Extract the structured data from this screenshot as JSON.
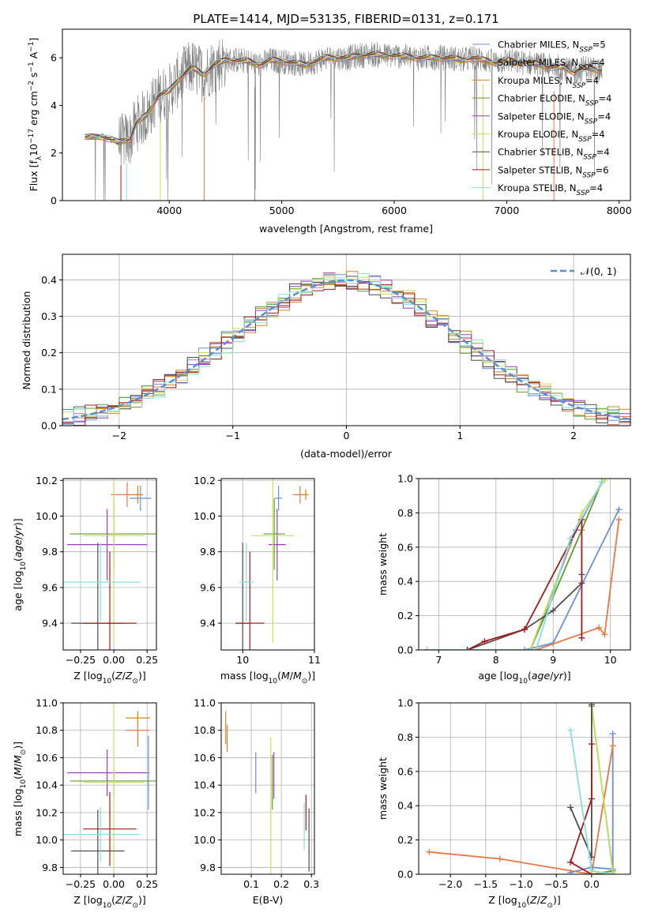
{
  "figure": {
    "title": "PLATE=1414, MJD=53135, FIBERID=0131, z=0.171"
  },
  "colors": {
    "Chabrier MILES": "#6a8ee0",
    "Salpeter MILES": "#e87840",
    "Kroupa MILES": "#d08a18",
    "Chabrier ELODIE": "#5f9c2e",
    "Salpeter ELODIE": "#9a3cc8",
    "Kroupa ELODIE": "#c9e05a",
    "Chabrier STELIB": "#4d4d4d",
    "Salpeter STELIB": "#a31a1a",
    "Kroupa STELIB": "#86dede",
    "data": "#808080",
    "normal": "#5b8ed6"
  },
  "chart_data": [
    {
      "id": "spectrum",
      "type": "line",
      "xlabel": "wavelength [Angstrom, rest frame]",
      "ylabel": "Flux [f_λ 10^-17 erg cm^-2 s^-1 A^-1]",
      "xlim": [
        3050,
        8100
      ],
      "ylim": [
        0,
        7.2
      ],
      "xticks": [
        4000,
        5000,
        6000,
        7000,
        8000
      ],
      "yticks": [
        0,
        2,
        4,
        6
      ],
      "legend_position": "upper-right",
      "legend": [
        {
          "label": "Chabrier MILES, N",
          "sub": "SSP",
          "suffix": "=5",
          "color_key": "Chabrier MILES"
        },
        {
          "label": "Salpeter MILES, N",
          "sub": "SSP",
          "suffix": "=4",
          "color_key": "Salpeter MILES"
        },
        {
          "label": "Kroupa MILES, N",
          "sub": "SSP",
          "suffix": "=4",
          "color_key": "Kroupa MILES"
        },
        {
          "label": "Chabrier ELODIE, N",
          "sub": "SSP",
          "suffix": "=4",
          "color_key": "Chabrier ELODIE"
        },
        {
          "label": "Salpeter ELODIE, N",
          "sub": "SSP",
          "suffix": "=4",
          "color_key": "Salpeter ELODIE"
        },
        {
          "label": "Kroupa ELODIE, N",
          "sub": "SSP",
          "suffix": "=4",
          "color_key": "Kroupa ELODIE"
        },
        {
          "label": "Chabrier STELIB, N",
          "sub": "SSP",
          "suffix": "=4",
          "color_key": "Chabrier STELIB"
        },
        {
          "label": "Salpeter STELIB, N",
          "sub": "SSP",
          "suffix": "=6",
          "color_key": "Salpeter STELIB"
        },
        {
          "label": "Kroupa STELIB, N",
          "sub": "SSP",
          "suffix": "=4",
          "color_key": "Kroupa STELIB"
        }
      ],
      "continuum": [
        [
          3250,
          2.65
        ],
        [
          3400,
          2.7
        ],
        [
          3550,
          2.45
        ],
        [
          3650,
          2.6
        ],
        [
          3700,
          3.2
        ],
        [
          3800,
          3.6
        ],
        [
          3900,
          4.4
        ],
        [
          4000,
          4.6
        ],
        [
          4100,
          5.2
        ],
        [
          4200,
          5.6
        ],
        [
          4300,
          5.3
        ],
        [
          4400,
          5.7
        ],
        [
          4500,
          5.9
        ],
        [
          4600,
          5.9
        ],
        [
          4700,
          5.85
        ],
        [
          4800,
          5.7
        ],
        [
          4900,
          5.9
        ],
        [
          5000,
          5.85
        ],
        [
          5100,
          5.8
        ],
        [
          5200,
          5.7
        ],
        [
          5300,
          5.85
        ],
        [
          5400,
          6.0
        ],
        [
          5500,
          6.0
        ],
        [
          5600,
          6.0
        ],
        [
          5700,
          6.1
        ],
        [
          5800,
          6.15
        ],
        [
          5900,
          6.1
        ],
        [
          6000,
          6.1
        ],
        [
          6100,
          6.05
        ],
        [
          6200,
          6.0
        ],
        [
          6300,
          6.0
        ],
        [
          6400,
          6.0
        ],
        [
          6500,
          6.0
        ],
        [
          6600,
          5.9
        ],
        [
          6700,
          6.0
        ],
        [
          6800,
          5.9
        ],
        [
          6900,
          5.8
        ],
        [
          7000,
          5.9
        ],
        [
          7100,
          5.8
        ],
        [
          7200,
          5.8
        ],
        [
          7300,
          5.7
        ],
        [
          7400,
          5.6
        ],
        [
          7500,
          5.6
        ],
        [
          7600,
          5.4
        ],
        [
          7700,
          5.6
        ],
        [
          7800,
          5.5
        ],
        [
          7850,
          5.5
        ]
      ]
    },
    {
      "id": "residuals",
      "type": "bar",
      "xlabel": "(data-model)/error",
      "ylabel": "Normed distribution",
      "xlim": [
        -2.5,
        2.5
      ],
      "ylim": [
        0,
        0.47
      ],
      "xticks": [
        -2,
        -1,
        0,
        1,
        2
      ],
      "yticks": [
        0.0,
        0.1,
        0.2,
        0.3,
        0.4
      ],
      "legend_position": "upper-right",
      "legend": [
        {
          "label": "𝒩(0, 1)",
          "style": "dashed"
        }
      ],
      "histogram_bin_width": 0.1
    },
    {
      "id": "age-vs-Z",
      "type": "scatter",
      "xlabel": "Z [log10(Z/Z⊙)]",
      "ylabel": "age  [log10(age/yr)]",
      "xlim": [
        -0.38,
        0.32
      ],
      "ylim": [
        9.25,
        10.21
      ],
      "xticks": [
        -0.25,
        0.0,
        0.25
      ],
      "yticks": [
        9.4,
        9.6,
        9.8,
        10.0,
        10.2
      ],
      "points": [
        {
          "model": "Chabrier MILES",
          "x": 0.2,
          "y": 10.1,
          "xerr": 0.08,
          "yerr": 0.07
        },
        {
          "model": "Salpeter MILES",
          "x": 0.1,
          "y": 10.12,
          "xerr": 0.12,
          "yerr": 0.07
        },
        {
          "model": "Kroupa MILES",
          "x": 0.18,
          "y": 10.12,
          "xerr": 0.02,
          "yerr": 0.05
        },
        {
          "model": "Chabrier ELODIE",
          "x": 0.0,
          "y": 9.9,
          "xerr": 0.33,
          "yerr": 0.2
        },
        {
          "model": "Salpeter ELODIE",
          "x": -0.05,
          "y": 9.84,
          "xerr": 0.3,
          "yerr": 0.2
        },
        {
          "model": "Kroupa ELODIE",
          "x": 0.0,
          "y": 9.89,
          "xerr": 0.23,
          "yerr": 0.6
        },
        {
          "model": "Chabrier STELIB",
          "x": -0.12,
          "y": 9.4,
          "xerr": 0.2,
          "yerr": 0.45
        },
        {
          "model": "Salpeter STELIB",
          "x": -0.03,
          "y": 9.4,
          "xerr": 0.2,
          "yerr": 0.4
        },
        {
          "model": "Kroupa STELIB",
          "x": -0.1,
          "y": 9.63,
          "xerr": 0.3,
          "yerr": 0.22
        }
      ]
    },
    {
      "id": "age-vs-mass",
      "type": "scatter",
      "xlabel": "mass [log10(M/M⊙)]",
      "ylabel": "",
      "xlim": [
        9.7,
        11.0
      ],
      "ylim": [
        9.25,
        10.21
      ],
      "xticks": [
        10,
        11
      ],
      "yticks": [
        9.4,
        9.6,
        9.8,
        10.0,
        10.2
      ],
      "points": [
        {
          "model": "Chabrier MILES",
          "x": 10.5,
          "y": 10.1,
          "xerr": 0.05,
          "yerr": 0.07
        },
        {
          "model": "Salpeter MILES",
          "x": 10.8,
          "y": 10.12,
          "xerr": 0.1,
          "yerr": 0.05
        },
        {
          "model": "Kroupa MILES",
          "x": 10.88,
          "y": 10.12,
          "xerr": 0.04,
          "yerr": 0.03
        },
        {
          "model": "Chabrier ELODIE",
          "x": 10.44,
          "y": 9.9,
          "xerr": 0.15,
          "yerr": 0.2
        },
        {
          "model": "Salpeter ELODIE",
          "x": 10.48,
          "y": 9.84,
          "xerr": 0.12,
          "yerr": 0.2
        },
        {
          "model": "Kroupa ELODIE",
          "x": 10.42,
          "y": 9.89,
          "xerr": 0.3,
          "yerr": 0.6
        },
        {
          "model": "Chabrier STELIB",
          "x": 10.0,
          "y": 9.4,
          "xerr": 0.1,
          "yerr": 0.45
        },
        {
          "model": "Salpeter STELIB",
          "x": 10.1,
          "y": 9.4,
          "xerr": 0.2,
          "yerr": 0.4
        },
        {
          "model": "Kroupa STELIB",
          "x": 10.05,
          "y": 9.63,
          "xerr": 0.1,
          "yerr": 0.22
        }
      ]
    },
    {
      "id": "weight-vs-age",
      "type": "line",
      "xlabel": "age  [log10(age/yr)]",
      "ylabel": "mass weight",
      "xlim": [
        6.65,
        10.35
      ],
      "ylim": [
        0,
        1.0
      ],
      "xticks": [
        7,
        8,
        9,
        10
      ],
      "yticks": [
        0.0,
        0.2,
        0.4,
        0.6,
        0.8,
        1.0
      ],
      "series": [
        {
          "model": "Chabrier MILES",
          "points": [
            [
              6.8,
              0
            ],
            [
              8.5,
              0
            ],
            [
              9.0,
              0.04
            ],
            [
              10.15,
              0.82
            ]
          ]
        },
        {
          "model": "Salpeter MILES",
          "points": [
            [
              6.8,
              0
            ],
            [
              8.7,
              0
            ],
            [
              9.8,
              0.13
            ],
            [
              9.9,
              0.09
            ],
            [
              10.15,
              0.76
            ]
          ]
        },
        {
          "model": "Chabrier ELODIE",
          "points": [
            [
              6.8,
              0
            ],
            [
              8.6,
              0
            ],
            [
              9.5,
              0.7
            ],
            [
              9.85,
              0.98
            ]
          ]
        },
        {
          "model": "Salpeter ELODIE",
          "points": [
            [
              6.8,
              0
            ],
            [
              8.6,
              0
            ],
            [
              9.4,
              0.7
            ],
            [
              9.85,
              0.98
            ]
          ]
        },
        {
          "model": "Kroupa ELODIE",
          "points": [
            [
              6.8,
              0
            ],
            [
              8.6,
              0
            ],
            [
              9.5,
              0.8
            ],
            [
              9.9,
              0.99
            ]
          ]
        },
        {
          "model": "Chabrier STELIB",
          "points": [
            [
              7.5,
              0
            ],
            [
              8.5,
              0.12
            ],
            [
              9.0,
              0.23
            ],
            [
              9.5,
              0.39
            ],
            [
              9.5,
              0.44
            ]
          ]
        },
        {
          "model": "Salpeter STELIB",
          "points": [
            [
              7.5,
              0
            ],
            [
              7.8,
              0.05
            ],
            [
              8.5,
              0.12
            ],
            [
              9.5,
              0.76
            ],
            [
              9.5,
              0.07
            ]
          ]
        },
        {
          "model": "Kroupa STELIB",
          "points": [
            [
              6.8,
              0
            ],
            [
              8.7,
              0
            ],
            [
              9.3,
              0.65
            ],
            [
              9.85,
              0.98
            ]
          ]
        }
      ]
    },
    {
      "id": "mass-vs-Z",
      "type": "scatter",
      "xlabel": "Z [log10(Z/Z⊙)]",
      "ylabel": "mass [log10(M/M⊙)]",
      "xlim": [
        -0.38,
        0.32
      ],
      "ylim": [
        9.75,
        11.0
      ],
      "xticks": [
        -0.25,
        0.0,
        0.25
      ],
      "yticks": [
        9.8,
        10.0,
        10.2,
        10.4,
        10.6,
        10.8,
        11.0
      ],
      "points": [
        {
          "model": "Chabrier MILES",
          "x": 0.26,
          "y": 10.49,
          "xerr": 0.01,
          "yerr": 0.27
        },
        {
          "model": "Salpeter MILES",
          "x": 0.18,
          "y": 10.8,
          "xerr": 0.09,
          "yerr": 0.12
        },
        {
          "model": "Kroupa MILES",
          "x": 0.18,
          "y": 10.89,
          "xerr": 0.09,
          "yerr": 0.05
        },
        {
          "model": "Chabrier ELODIE",
          "x": 0.0,
          "y": 10.43,
          "xerr": 0.33,
          "yerr": 0.1
        },
        {
          "model": "Salpeter ELODIE",
          "x": -0.05,
          "y": 10.49,
          "xerr": 0.3,
          "yerr": 0.17
        },
        {
          "model": "Kroupa ELODIE",
          "x": 0.0,
          "y": 10.42,
          "xerr": 0.23,
          "yerr": 0.65
        },
        {
          "model": "Chabrier STELIB",
          "x": -0.12,
          "y": 9.92,
          "xerr": 0.2,
          "yerr": 0.3
        },
        {
          "model": "Salpeter STELIB",
          "x": -0.03,
          "y": 10.08,
          "xerr": 0.2,
          "yerr": 0.27
        },
        {
          "model": "Kroupa STELIB",
          "x": -0.1,
          "y": 10.04,
          "xerr": 0.3,
          "yerr": 0.2
        }
      ]
    },
    {
      "id": "mass-vs-EBV",
      "type": "scatter",
      "xlabel": "E(B-V)",
      "ylabel": "",
      "xlim": [
        0.0,
        0.31
      ],
      "ylim": [
        9.75,
        11.0
      ],
      "xticks": [
        0.1,
        0.2,
        0.3
      ],
      "yticks": [
        9.8,
        10.0,
        10.2,
        10.4,
        10.6,
        10.8,
        11.0
      ],
      "points": [
        {
          "model": "Chabrier MILES",
          "x": 0.115,
          "y": 10.49,
          "yerr": 0.15
        },
        {
          "model": "Salpeter MILES",
          "x": 0.02,
          "y": 10.74,
          "yerr": 0.1
        },
        {
          "model": "Kroupa MILES",
          "x": 0.015,
          "y": 10.82,
          "yerr": 0.12
        },
        {
          "model": "Chabrier ELODIE",
          "x": 0.17,
          "y": 10.42,
          "yerr": 0.2
        },
        {
          "model": "Salpeter ELODIE",
          "x": 0.175,
          "y": 10.47,
          "yerr": 0.17
        },
        {
          "model": "Kroupa ELODIE",
          "x": 0.165,
          "y": 10.2,
          "yerr": 0.55
        },
        {
          "model": "Chabrier STELIB",
          "x": 0.292,
          "y": 10.0,
          "yerr": 0.23
        },
        {
          "model": "Salpeter STELIB",
          "x": 0.282,
          "y": 10.2,
          "yerr": 0.13
        },
        {
          "model": "Kroupa STELIB",
          "x": 0.276,
          "y": 10.1,
          "yerr": 0.17
        }
      ]
    },
    {
      "id": "weight-vs-Z",
      "type": "line",
      "xlabel": "Z [log10(Z/Z⊙)]",
      "ylabel": "mass weight",
      "xlim": [
        -2.45,
        0.55
      ],
      "ylim": [
        0,
        1.0
      ],
      "xticks": [
        -2.0,
        -1.5,
        -1.0,
        -0.5,
        0.0
      ],
      "yticks": [
        0.0,
        0.2,
        0.4,
        0.6,
        0.8,
        1.0
      ],
      "series": [
        {
          "model": "Chabrier MILES",
          "points": [
            [
              0.3,
              0.82
            ],
            [
              0.3,
              0.03
            ],
            [
              0.0,
              0.04
            ],
            [
              -0.3,
              0.01
            ]
          ]
        },
        {
          "model": "Salpeter MILES",
          "points": [
            [
              -2.3,
              0.13
            ],
            [
              -1.3,
              0.09
            ],
            [
              0.0,
              0.0
            ],
            [
              0.3,
              0.75
            ]
          ]
        },
        {
          "model": "Chabrier ELODIE",
          "points": [
            [
              0.0,
              0.98
            ],
            [
              0.3,
              0.02
            ],
            [
              0.0,
              0.0
            ]
          ]
        },
        {
          "model": "Kroupa ELODIE",
          "points": [
            [
              0.0,
              0.99
            ],
            [
              0.3,
              0.01
            ],
            [
              0.0,
              0.0
            ]
          ]
        },
        {
          "model": "Chabrier STELIB",
          "points": [
            [
              -0.3,
              0.39
            ],
            [
              0.0,
              0.1
            ],
            [
              0.0,
              0.99
            ]
          ]
        },
        {
          "model": "Salpeter STELIB",
          "points": [
            [
              0.0,
              0.76
            ],
            [
              0.0,
              0.44
            ],
            [
              -0.3,
              0.07
            ],
            [
              0.0,
              0.0
            ],
            [
              0.3,
              0.0
            ]
          ]
        },
        {
          "model": "Kroupa STELIB",
          "points": [
            [
              -0.3,
              0.84
            ],
            [
              0.0,
              0.02
            ],
            [
              0.3,
              0.0
            ]
          ]
        }
      ]
    }
  ]
}
